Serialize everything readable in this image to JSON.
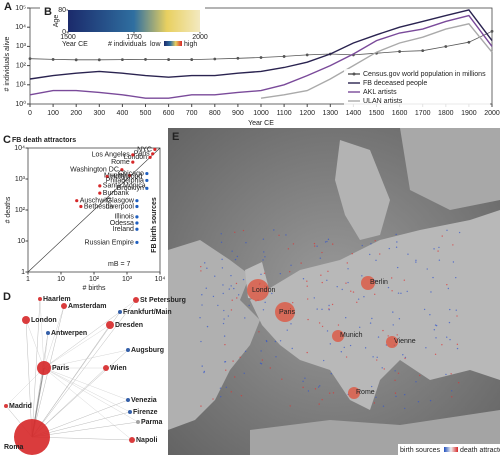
{
  "chart_data": [
    {
      "type": "line",
      "label": "A",
      "xlabel": "Year CE",
      "ylabel": "# individuals alive",
      "log_y": true,
      "xlim": [
        0,
        2000
      ],
      "xticks": [
        0,
        100,
        200,
        300,
        400,
        500,
        600,
        700,
        800,
        900,
        1000,
        1100,
        1200,
        1300,
        1400,
        1500,
        1600,
        1700,
        1800,
        1900,
        2000
      ],
      "ylim": [
        1,
        100000
      ],
      "yticks": [
        {
          "value": 1,
          "label": "10⁰"
        },
        {
          "value": 10,
          "label": "10¹"
        },
        {
          "value": 100,
          "label": "10²"
        },
        {
          "value": 1000,
          "label": "10³"
        },
        {
          "value": 10000,
          "label": "10⁴"
        },
        {
          "value": 100000,
          "label": "10⁵"
        }
      ],
      "legend": "lower right",
      "x": [
        0,
        100,
        200,
        300,
        400,
        500,
        600,
        700,
        800,
        900,
        1000,
        1100,
        1200,
        1300,
        1400,
        1500,
        1600,
        1700,
        1800,
        1900,
        2000
      ],
      "series": [
        {
          "name": "Census.gov world population in millions",
          "color": "#555555",
          "marker": true,
          "values": [
            230,
            210,
            200,
            200,
            205,
            210,
            206,
            206,
            220,
            240,
            265,
            300,
            360,
            400,
            360,
            440,
            540,
            600,
            990,
            1650,
            6100
          ]
        },
        {
          "name": "FB deceased people",
          "color": "#2a2350",
          "marker": false,
          "values": [
            20,
            30,
            40,
            50,
            40,
            30,
            25,
            30,
            30,
            40,
            50,
            80,
            150,
            400,
            1500,
            4000,
            10000,
            20000,
            40000,
            80000,
            2000
          ]
        },
        {
          "name": "AKL artists",
          "color": "#7a4a9a",
          "marker": false,
          "values": [
            3,
            5,
            5,
            4,
            3,
            2,
            2,
            3,
            3,
            4,
            5,
            10,
            30,
            100,
            400,
            2000,
            5000,
            8000,
            20000,
            40000,
            1000
          ]
        },
        {
          "name": "ULAN artists",
          "color": "#aaaaaa",
          "marker": false,
          "values": [
            null,
            null,
            null,
            null,
            null,
            null,
            null,
            null,
            null,
            null,
            2,
            3,
            5,
            20,
            100,
            500,
            1500,
            3000,
            8000,
            15000,
            500
          ]
        }
      ]
    },
    {
      "type": "heatmap",
      "label": "B",
      "ylabel": "Age",
      "xlabel": "Year CE",
      "xlim": [
        1500,
        2000
      ],
      "xticks": [
        1500,
        1750,
        2000
      ],
      "ylim": [
        0,
        80
      ],
      "yticks": [
        0,
        80
      ],
      "legend_title": "# individuals",
      "legend_low": "low",
      "legend_high": "high"
    },
    {
      "type": "scatter",
      "label": "C",
      "title": "FB death attractors",
      "side_label": "FB birth sources",
      "note": "mB = 7",
      "xlabel": "# births",
      "ylabel": "# deaths",
      "log_x": true,
      "log_y": true,
      "xlim": [
        1,
        10000
      ],
      "ylim": [
        1,
        10000
      ],
      "xticks": [
        1,
        10,
        {
          "value": 100,
          "label": "10²"
        },
        {
          "value": 1000,
          "label": "10³"
        },
        {
          "value": 10000,
          "label": "10⁴"
        }
      ],
      "yticks": [
        1,
        10,
        {
          "value": 100,
          "label": "10²"
        },
        {
          "value": 1000,
          "label": "10³"
        },
        {
          "value": 10000,
          "label": "10⁴"
        }
      ],
      "points": [
        {
          "name": "NYC",
          "x": 7000,
          "y": 9000,
          "color": "#d62728"
        },
        {
          "name": "Paris",
          "x": 6000,
          "y": 6500,
          "color": "#d62728"
        },
        {
          "name": "London",
          "x": 5000,
          "y": 5000,
          "color": "#d62728"
        },
        {
          "name": "Los Angeles",
          "x": 1500,
          "y": 6000,
          "color": "#d62728"
        },
        {
          "name": "Rome",
          "x": 1500,
          "y": 3500,
          "color": "#d62728"
        },
        {
          "name": "Washington DC",
          "x": 700,
          "y": 2000,
          "color": "#d62728"
        },
        {
          "name": "Munich",
          "x": 1200,
          "y": 1300,
          "color": "#d62728"
        },
        {
          "name": "Hollywood",
          "x": 250,
          "y": 1200,
          "color": "#d62728"
        },
        {
          "name": "Santa Monica",
          "x": 150,
          "y": 600,
          "color": "#d62728"
        },
        {
          "name": "Burbank",
          "x": 150,
          "y": 350,
          "color": "#d62728"
        },
        {
          "name": "Auschwitz",
          "x": 30,
          "y": 200,
          "color": "#d62728"
        },
        {
          "name": "Bethesda",
          "x": 40,
          "y": 130,
          "color": "#d62728"
        },
        {
          "name": "Chicago",
          "x": 4000,
          "y": 1500,
          "color": "#1f5fbf"
        },
        {
          "name": "Philadelphia",
          "x": 4000,
          "y": 900,
          "color": "#1f5fbf"
        },
        {
          "name": "Brooklyn",
          "x": 4000,
          "y": 500,
          "color": "#1f5fbf"
        },
        {
          "name": "Glasgow",
          "x": 2000,
          "y": 200,
          "color": "#1f5fbf"
        },
        {
          "name": "Liverpool",
          "x": 2000,
          "y": 130,
          "color": "#1f5fbf"
        },
        {
          "name": "Illinois",
          "x": 2000,
          "y": 60,
          "color": "#1f5fbf"
        },
        {
          "name": "Odessa",
          "x": 2000,
          "y": 38,
          "color": "#1f5fbf"
        },
        {
          "name": "Ireland",
          "x": 2000,
          "y": 24,
          "color": "#1f5fbf"
        },
        {
          "name": "Russian Empire",
          "x": 2000,
          "y": 9,
          "color": "#1f5fbf"
        }
      ]
    },
    {
      "type": "network",
      "label": "D",
      "nodes": [
        {
          "name": "Roma",
          "color": "#d62728"
        },
        {
          "name": "Paris",
          "color": "#d62728"
        },
        {
          "name": "London",
          "color": "#d62728"
        },
        {
          "name": "Amsterdam",
          "color": "#d62728"
        },
        {
          "name": "Dresden",
          "color": "#d62728"
        },
        {
          "name": "Wien",
          "color": "#d62728"
        },
        {
          "name": "Frankfurt/Main",
          "color": "#1f4fa0"
        },
        {
          "name": "Antwerpen",
          "color": "#1f4fa0"
        },
        {
          "name": "Augsburg",
          "color": "#1f4fa0"
        },
        {
          "name": "Venezia",
          "color": "#1f4fa0"
        },
        {
          "name": "Firenze",
          "color": "#1f4fa0"
        },
        {
          "name": "Napoli",
          "color": "#d62728"
        },
        {
          "name": "Madrid",
          "color": "#d62728"
        },
        {
          "name": "Haarlem",
          "color": "#d62728"
        },
        {
          "name": "St Petersburg",
          "color": "#d62728"
        },
        {
          "name": "Parma",
          "color": "#999999"
        }
      ]
    },
    {
      "type": "map",
      "label": "E",
      "legend_low": "birth sources",
      "legend_high": "death attractors",
      "cities": [
        {
          "name": "London"
        },
        {
          "name": "Paris"
        },
        {
          "name": "Berlin"
        },
        {
          "name": "Munich"
        },
        {
          "name": "Vienne"
        },
        {
          "name": "Rome"
        }
      ]
    }
  ]
}
